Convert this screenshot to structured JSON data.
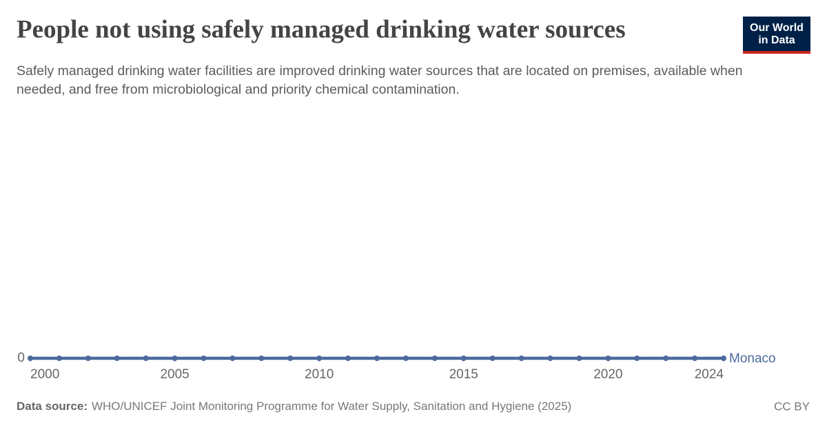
{
  "chart_data": {
    "type": "line",
    "title": "People not using safely managed drinking water sources",
    "subtitle": "Safely managed drinking water facilities are improved drinking water sources that are located on premises, available when needed, and free from microbiological and priority chemical contamination.",
    "logo": [
      "Our World",
      "in Data"
    ],
    "source_label": "Data source:",
    "source": "WHO/UNICEF Joint Monitoring Programme for Water Supply, Sanitation and Hygiene (2025)",
    "license": "CC BY",
    "x": [
      2000,
      2001,
      2002,
      2003,
      2004,
      2005,
      2006,
      2007,
      2008,
      2009,
      2010,
      2011,
      2012,
      2013,
      2014,
      2015,
      2016,
      2017,
      2018,
      2019,
      2020,
      2021,
      2022,
      2023,
      2024
    ],
    "series": [
      {
        "name": "Monaco",
        "color": "#4c6a9c",
        "values": [
          0,
          0,
          0,
          0,
          0,
          0,
          0,
          0,
          0,
          0,
          0,
          0,
          0,
          0,
          0,
          0,
          0,
          0,
          0,
          0,
          0,
          0,
          0,
          0,
          0
        ]
      }
    ],
    "xlim": [
      2000,
      2024
    ],
    "xticks": [
      2000,
      2005,
      2010,
      2015,
      2020,
      2024
    ],
    "ylim": [
      0,
      1
    ],
    "yticks": [
      0
    ],
    "grid": true
  }
}
